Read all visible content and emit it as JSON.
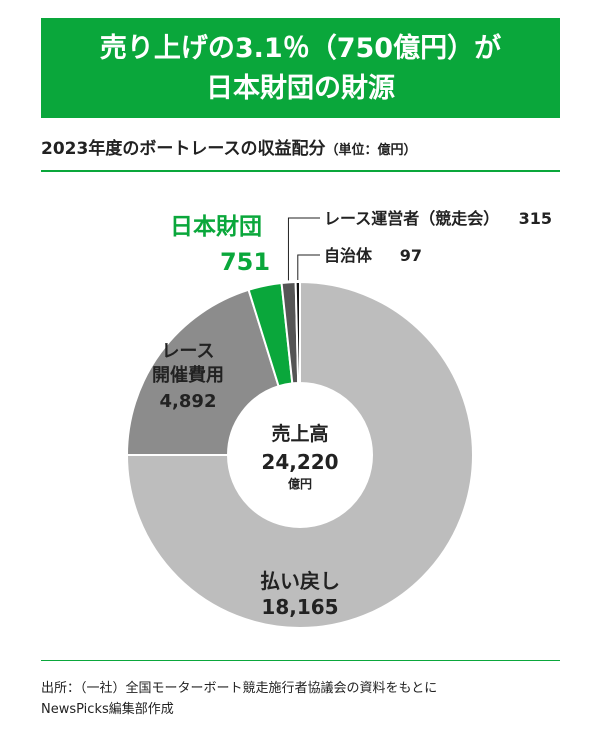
{
  "header": {
    "line1": "売り上げの3.1％（750億円）が",
    "line2": "日本財団の財源"
  },
  "subtitle": {
    "text": "2023年度のボートレースの収益配分",
    "unit": "（単位：億円）"
  },
  "source": {
    "line1": "出所：（一社）全国モーターボート競走施行者協議会の資料をもとに",
    "line2": "NewsPicks編集部作成"
  },
  "colors": {
    "green": "#0aa73b",
    "light_gray": "#bdbdbd",
    "mid_gray": "#8c8c8c",
    "dark_gray": "#555555",
    "black": "#111111"
  },
  "chart_data": {
    "type": "pie",
    "style": "donut",
    "center_label": "売上高",
    "center_value": "24,220",
    "center_unit": "億円",
    "slices": [
      {
        "label": "払い戻し",
        "value": 18165,
        "value_label": "18,165",
        "color": "#bdbdbd"
      },
      {
        "label": "レース開催費用",
        "label_lines": [
          "レース",
          "開催費用"
        ],
        "value": 4892,
        "value_label": "4,892",
        "color": "#8c8c8c"
      },
      {
        "label": "日本財団",
        "value": 751,
        "value_label": "751",
        "color": "#0aa73b"
      },
      {
        "label": "レース運営者（競走会）",
        "value": 315,
        "value_label": "315",
        "color": "#555555"
      },
      {
        "label": "自治体",
        "value": 97,
        "value_label": "97",
        "color": "#111111"
      }
    ]
  }
}
